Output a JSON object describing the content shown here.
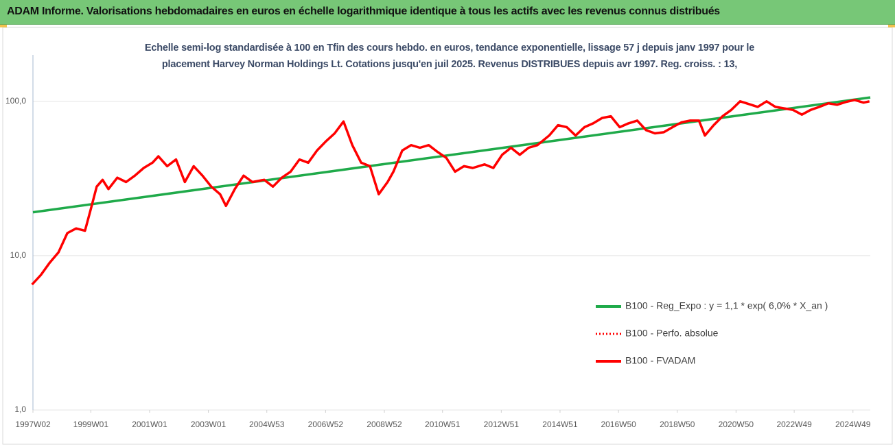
{
  "chart_data": {
    "type": "line",
    "title": "ADAM Informe. Valorisations hebdomadaires en euros en échelle logarithmique identique à tous les actifs avec les revenus connus distribués",
    "subtitle": "Echelle semi-log standardisée à 100 en Tfin des cours hebdo. en euros, tendance exponentielle, lissage 57 j depuis janv 1997 pour le placement Harvey Norman Holdings Lt. Cotations jusqu'en juil 2025. Revenus DISTRIBUES depuis avr 1997. Reg. croiss. : 13,",
    "log_scale": true,
    "grid": true,
    "legend": "right",
    "xlim": [
      1997.03,
      2025.53
    ],
    "ylim": [
      1,
      200
    ],
    "yticks": [
      {
        "value": 1,
        "label": "1,0"
      },
      {
        "value": 10,
        "label": "10,0"
      },
      {
        "value": 100,
        "label": "100,0"
      }
    ],
    "xticks": [
      {
        "value": 1997.03,
        "label": "1997W02"
      },
      {
        "value": 1999.0,
        "label": "1999W01"
      },
      {
        "value": 2001.0,
        "label": "2001W01"
      },
      {
        "value": 2003.0,
        "label": "2003W01"
      },
      {
        "value": 2004.99,
        "label": "2004W53"
      },
      {
        "value": 2006.99,
        "label": "2006W52"
      },
      {
        "value": 2008.99,
        "label": "2008W52"
      },
      {
        "value": 2010.97,
        "label": "2010W51"
      },
      {
        "value": 2012.97,
        "label": "2012W51"
      },
      {
        "value": 2014.97,
        "label": "2014W51"
      },
      {
        "value": 2016.96,
        "label": "2016W50"
      },
      {
        "value": 2018.96,
        "label": "2018W50"
      },
      {
        "value": 2020.96,
        "label": "2020W50"
      },
      {
        "value": 2022.94,
        "label": "2022W49"
      },
      {
        "value": 2024.94,
        "label": "2024W49"
      }
    ],
    "series": [
      {
        "name": "B100 - Reg_Expo : y = 1,1 * exp( 6,0% *  X_an )",
        "color": "#1faa4a",
        "style": "solid",
        "x": [
          1997.03,
          2025.53
        ],
        "values": [
          19.1,
          106
        ]
      },
      {
        "name": "B100 - Perfo. absolue",
        "color": "#ff0000",
        "style": "dotted",
        "x": [
          1997.0,
          1997.3,
          1997.6,
          1997.9,
          1998.2,
          1998.5,
          1998.8,
          1999.0,
          1999.2,
          1999.4,
          1999.6,
          1999.9,
          2000.2,
          2000.5,
          2000.8,
          2001.1,
          2001.3,
          2001.6,
          2001.9,
          2002.2,
          2002.5,
          2002.8,
          2003.1,
          2003.4,
          2003.6,
          2003.9,
          2004.2,
          2004.5,
          2004.9,
          2005.2,
          2005.5,
          2005.8,
          2006.1,
          2006.4,
          2006.7,
          2007.0,
          2007.3,
          2007.6,
          2007.9,
          2008.2,
          2008.5,
          2008.8,
          2009.1,
          2009.3,
          2009.6,
          2009.9,
          2010.2,
          2010.5,
          2010.8,
          2011.1,
          2011.4,
          2011.7,
          2012.0,
          2012.4,
          2012.7,
          2013.0,
          2013.3,
          2013.6,
          2013.9,
          2014.2,
          2014.6,
          2014.9,
          2015.2,
          2015.5,
          2015.8,
          2016.1,
          2016.4,
          2016.7,
          2017.0,
          2017.3,
          2017.6,
          2017.9,
          2018.2,
          2018.5,
          2018.8,
          2019.1,
          2019.4,
          2019.7,
          2019.9,
          2020.2,
          2020.5,
          2020.8,
          2021.1,
          2021.4,
          2021.7,
          2022.0,
          2022.3,
          2022.6,
          2022.9,
          2023.2,
          2023.5,
          2023.8,
          2024.1,
          2024.4,
          2024.7,
          2025.0,
          2025.3,
          2025.5
        ],
        "values": [
          6.5,
          7.5,
          9.0,
          10.5,
          14,
          15,
          14.5,
          20,
          28,
          31,
          27,
          32,
          30,
          33,
          37,
          40,
          44,
          38,
          42,
          30,
          38,
          33,
          28,
          25,
          21,
          27,
          33,
          30,
          31,
          28,
          32,
          35,
          42,
          40,
          48,
          55,
          62,
          74,
          52,
          40,
          38,
          25,
          30,
          35,
          48,
          52,
          50,
          52,
          47,
          43,
          35,
          38,
          37,
          39,
          37,
          45,
          50,
          45,
          50,
          52,
          60,
          70,
          68,
          60,
          68,
          72,
          78,
          80,
          68,
          72,
          75,
          65,
          62,
          63,
          68,
          73,
          75,
          75,
          60,
          70,
          80,
          88,
          100,
          96,
          92,
          100,
          92,
          90,
          88,
          82,
          88,
          92,
          97,
          95,
          99,
          102,
          98,
          100
        ]
      },
      {
        "name": "B100 - FVADAM",
        "color": "#ff0000",
        "style": "solid",
        "x": [
          1997.0,
          1997.3,
          1997.6,
          1997.9,
          1998.2,
          1998.5,
          1998.8,
          1999.0,
          1999.2,
          1999.4,
          1999.6,
          1999.9,
          2000.2,
          2000.5,
          2000.8,
          2001.1,
          2001.3,
          2001.6,
          2001.9,
          2002.2,
          2002.5,
          2002.8,
          2003.1,
          2003.4,
          2003.6,
          2003.9,
          2004.2,
          2004.5,
          2004.9,
          2005.2,
          2005.5,
          2005.8,
          2006.1,
          2006.4,
          2006.7,
          2007.0,
          2007.3,
          2007.6,
          2007.9,
          2008.2,
          2008.5,
          2008.8,
          2009.1,
          2009.3,
          2009.6,
          2009.9,
          2010.2,
          2010.5,
          2010.8,
          2011.1,
          2011.4,
          2011.7,
          2012.0,
          2012.4,
          2012.7,
          2013.0,
          2013.3,
          2013.6,
          2013.9,
          2014.2,
          2014.6,
          2014.9,
          2015.2,
          2015.5,
          2015.8,
          2016.1,
          2016.4,
          2016.7,
          2017.0,
          2017.3,
          2017.6,
          2017.9,
          2018.2,
          2018.5,
          2018.8,
          2019.1,
          2019.4,
          2019.7,
          2019.9,
          2020.2,
          2020.5,
          2020.8,
          2021.1,
          2021.4,
          2021.7,
          2022.0,
          2022.3,
          2022.6,
          2022.9,
          2023.2,
          2023.5,
          2023.8,
          2024.1,
          2024.4,
          2024.7,
          2025.0,
          2025.3,
          2025.5
        ],
        "values": [
          6.5,
          7.5,
          9.0,
          10.5,
          14,
          15,
          14.5,
          20,
          28,
          31,
          27,
          32,
          30,
          33,
          37,
          40,
          44,
          38,
          42,
          30,
          38,
          33,
          28,
          25,
          21,
          27,
          33,
          30,
          31,
          28,
          32,
          35,
          42,
          40,
          48,
          55,
          62,
          74,
          52,
          40,
          38,
          25,
          30,
          35,
          48,
          52,
          50,
          52,
          47,
          43,
          35,
          38,
          37,
          39,
          37,
          45,
          50,
          45,
          50,
          52,
          60,
          70,
          68,
          60,
          68,
          72,
          78,
          80,
          68,
          72,
          75,
          65,
          62,
          63,
          68,
          73,
          75,
          75,
          60,
          70,
          80,
          88,
          100,
          96,
          92,
          100,
          92,
          90,
          88,
          82,
          88,
          92,
          97,
          95,
          99,
          102,
          98,
          100
        ]
      }
    ]
  }
}
